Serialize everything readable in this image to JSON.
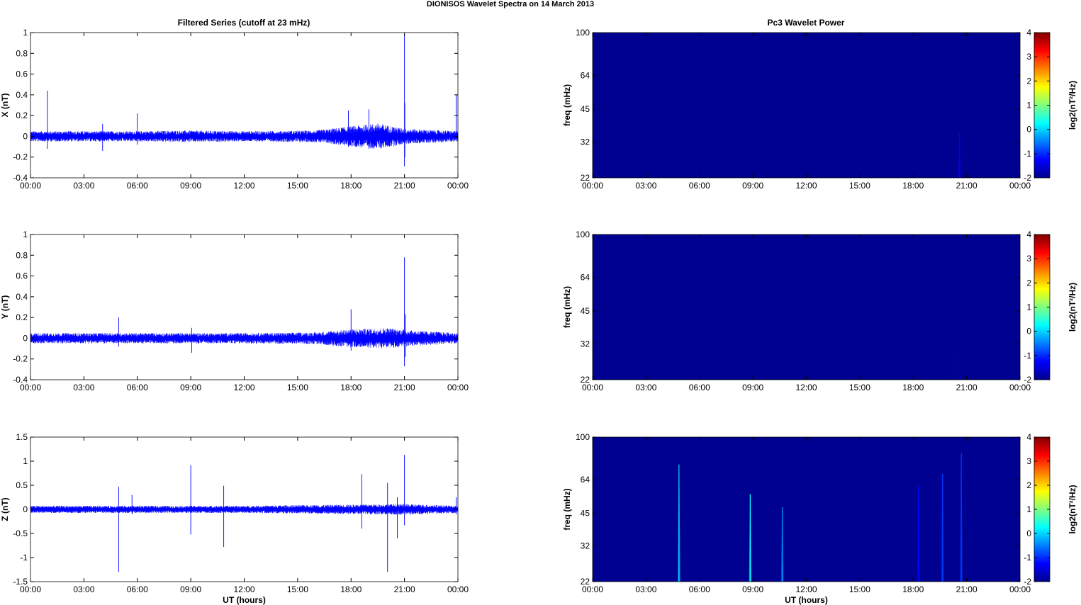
{
  "figure": {
    "title": "DIONISOS Wavelet Spectra on 14 March     2013",
    "left_title": "Filtered Series (cutoff at 23 mHz)",
    "right_title": "Pc3 Wavelet Power",
    "x_label": "UT (hours)",
    "colors": {
      "trace": "#0000ff",
      "background_power": "#00009c"
    }
  },
  "chart_data": [
    {
      "type": "line",
      "ylabel": "X (nT)",
      "xlabel": "",
      "x_ticks": [
        "00:00",
        "03:00",
        "06:00",
        "09:00",
        "12:00",
        "15:00",
        "18:00",
        "21:00",
        "00:00"
      ],
      "xlim": [
        0,
        24
      ],
      "ylim": [
        -0.4,
        1
      ],
      "y_ticks": [
        -0.4,
        -0.2,
        0,
        0.2,
        0.4,
        0.6,
        0.8,
        1
      ],
      "noise_envelope": [
        {
          "t_hours": 0,
          "amp": 0.04
        },
        {
          "t_hours": 6,
          "amp": 0.04
        },
        {
          "t_hours": 9,
          "amp": 0.045
        },
        {
          "t_hours": 12,
          "amp": 0.04
        },
        {
          "t_hours": 16,
          "amp": 0.045
        },
        {
          "t_hours": 17.5,
          "amp": 0.07
        },
        {
          "t_hours": 19.5,
          "amp": 0.1
        },
        {
          "t_hours": 21,
          "amp": 0.06
        },
        {
          "t_hours": 24,
          "amp": 0.04
        }
      ],
      "spikes": [
        {
          "t_hours": 0.95,
          "max": 0.44,
          "min": -0.12
        },
        {
          "t_hours": 4.05,
          "max": 0.12,
          "min": -0.14
        },
        {
          "t_hours": 6.0,
          "max": 0.22,
          "min": -0.08
        },
        {
          "t_hours": 17.85,
          "max": 0.25,
          "min": -0.1
        },
        {
          "t_hours": 19.0,
          "max": 0.26,
          "min": -0.12
        },
        {
          "t_hours": 21.0,
          "max": 0.97,
          "min": -0.29
        },
        {
          "t_hours": 21.02,
          "max": 0.32,
          "min": -0.2
        },
        {
          "t_hours": 23.9,
          "max": 0.4,
          "min": -0.05
        }
      ]
    },
    {
      "type": "line",
      "ylabel": "Y (nT)",
      "xlabel": "",
      "x_ticks": [
        "00:00",
        "03:00",
        "06:00",
        "09:00",
        "12:00",
        "15:00",
        "18:00",
        "21:00",
        "00:00"
      ],
      "xlim": [
        0,
        24
      ],
      "ylim": [
        -0.4,
        1
      ],
      "y_ticks": [
        -0.4,
        -0.2,
        0,
        0.2,
        0.4,
        0.6,
        0.8,
        1
      ],
      "noise_envelope": [
        {
          "t_hours": 0,
          "amp": 0.04
        },
        {
          "t_hours": 6,
          "amp": 0.04
        },
        {
          "t_hours": 12,
          "amp": 0.04
        },
        {
          "t_hours": 16,
          "amp": 0.045
        },
        {
          "t_hours": 18,
          "amp": 0.07
        },
        {
          "t_hours": 20,
          "amp": 0.08
        },
        {
          "t_hours": 21.5,
          "amp": 0.06
        },
        {
          "t_hours": 24,
          "amp": 0.04
        }
      ],
      "spikes": [
        {
          "t_hours": 4.95,
          "max": 0.2,
          "min": -0.08
        },
        {
          "t_hours": 9.05,
          "max": 0.1,
          "min": -0.14
        },
        {
          "t_hours": 18.0,
          "max": 0.28,
          "min": -0.12
        },
        {
          "t_hours": 21.0,
          "max": 0.78,
          "min": -0.27
        },
        {
          "t_hours": 21.05,
          "max": 0.23,
          "min": -0.18
        }
      ]
    },
    {
      "type": "line",
      "ylabel": "Z (nT)",
      "xlabel": "UT (hours)",
      "x_ticks": [
        "00:00",
        "03:00",
        "06:00",
        "09:00",
        "12:00",
        "15:00",
        "18:00",
        "21:00",
        "00:00"
      ],
      "xlim": [
        0,
        24
      ],
      "ylim": [
        -1.5,
        1.5
      ],
      "y_ticks": [
        -1.5,
        -1,
        -0.5,
        0,
        0.5,
        1,
        1.5
      ],
      "noise_envelope": [
        {
          "t_hours": 0,
          "amp": 0.06
        },
        {
          "t_hours": 12,
          "amp": 0.06
        },
        {
          "t_hours": 18,
          "amp": 0.08
        },
        {
          "t_hours": 21,
          "amp": 0.09
        },
        {
          "t_hours": 24,
          "amp": 0.06
        }
      ],
      "spikes": [
        {
          "t_hours": 4.95,
          "max": 0.47,
          "min": -1.3
        },
        {
          "t_hours": 5.7,
          "max": 0.3,
          "min": -0.1
        },
        {
          "t_hours": 9.0,
          "max": 0.92,
          "min": -0.52
        },
        {
          "t_hours": 10.85,
          "max": 0.49,
          "min": -0.78
        },
        {
          "t_hours": 18.6,
          "max": 0.73,
          "min": -0.4
        },
        {
          "t_hours": 20.05,
          "max": 0.55,
          "min": -1.3
        },
        {
          "t_hours": 20.6,
          "max": 0.25,
          "min": -0.6
        },
        {
          "t_hours": 21.0,
          "max": 1.13,
          "min": -0.33
        },
        {
          "t_hours": 23.9,
          "max": 0.25,
          "min": -0.1
        }
      ]
    },
    {
      "type": "heatmap",
      "ylabel": "freq (mHz)",
      "xlabel": "",
      "x_ticks": [
        "00:00",
        "03:00",
        "06:00",
        "09:00",
        "12:00",
        "15:00",
        "18:00",
        "21:00",
        "00:00"
      ],
      "xlim": [
        0,
        24
      ],
      "ylim": [
        22,
        100
      ],
      "y_scale": "log",
      "y_ticks": [
        22,
        32,
        45,
        64,
        100
      ],
      "colorbar_label": "log2(nT²/Hz)",
      "colorbar_ticks": [
        -2,
        -1,
        0,
        1,
        2,
        3,
        4
      ],
      "clim": [
        -2,
        4
      ],
      "background_level": -1.9,
      "bursts": [
        {
          "t_hours": 20.6,
          "f_top_mHz": 35,
          "level": -1.3
        }
      ]
    },
    {
      "type": "heatmap",
      "ylabel": "freq (mHz)",
      "xlabel": "",
      "x_ticks": [
        "00:00",
        "03:00",
        "06:00",
        "09:00",
        "12:00",
        "15:00",
        "18:00",
        "21:00",
        "00:00"
      ],
      "xlim": [
        0,
        24
      ],
      "ylim": [
        22,
        100
      ],
      "y_scale": "log",
      "y_ticks": [
        22,
        32,
        45,
        64,
        100
      ],
      "colorbar_label": "log2(nT²/Hz)",
      "colorbar_ticks": [
        -2,
        -1,
        0,
        1,
        2,
        3,
        4
      ],
      "clim": [
        -2,
        4
      ],
      "background_level": -1.9,
      "bursts": [
        {
          "t_hours": 20.6,
          "f_top_mHz": 30,
          "level": -1.75
        }
      ]
    },
    {
      "type": "heatmap",
      "ylabel": "freq (mHz)",
      "xlabel": "UT (hours)",
      "x_ticks": [
        "00:00",
        "03:00",
        "06:00",
        "09:00",
        "12:00",
        "15:00",
        "18:00",
        "21:00",
        "00:00"
      ],
      "xlim": [
        0,
        24
      ],
      "ylim": [
        22,
        100
      ],
      "y_scale": "log",
      "y_ticks": [
        22,
        32,
        45,
        64,
        100
      ],
      "colorbar_label": "log2(nT²/Hz)",
      "colorbar_ticks": [
        -2,
        -1,
        0,
        1,
        2,
        3,
        4
      ],
      "clim": [
        -2,
        4
      ],
      "background_level": -1.9,
      "bursts": [
        {
          "t_hours": 4.85,
          "f_top_mHz": 75,
          "level": 0.0
        },
        {
          "t_hours": 8.85,
          "f_top_mHz": 55,
          "level": 0.3
        },
        {
          "t_hours": 10.65,
          "f_top_mHz": 48,
          "level": -0.4
        },
        {
          "t_hours": 18.3,
          "f_top_mHz": 60,
          "level": -1.2
        },
        {
          "t_hours": 19.65,
          "f_top_mHz": 68,
          "level": -0.9
        },
        {
          "t_hours": 20.7,
          "f_top_mHz": 85,
          "level": -0.9
        }
      ]
    }
  ]
}
